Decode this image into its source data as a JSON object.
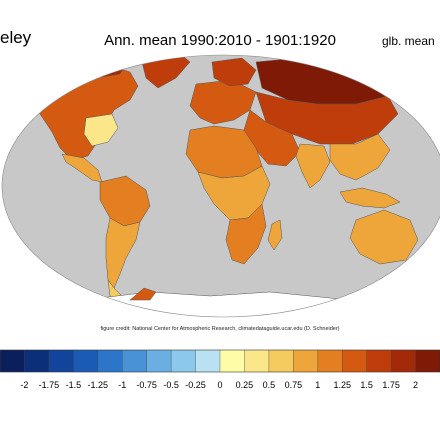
{
  "header": {
    "left_label": "eley",
    "title": "Ann. mean 1990:2010 - 1901:1920",
    "right_label": "glb. mean"
  },
  "credit": "figure credit: National Center for Atmospheric Research, climatedataguide.ucar.edu (D. Schneider)",
  "map": {
    "ocean_color": "#c8c8c8",
    "outline_color": "#555555",
    "regions": [
      {
        "name": "north-america",
        "value": 1.25
      },
      {
        "name": "arctic-canada",
        "value": 1.75
      },
      {
        "name": "alaska",
        "value": 1.75
      },
      {
        "name": "greenland",
        "value": 1.5
      },
      {
        "name": "eastern-us",
        "value": 0.25
      },
      {
        "name": "central-america",
        "value": 0.75
      },
      {
        "name": "south-america",
        "value": 0.75
      },
      {
        "name": "amazon",
        "value": 1.0
      },
      {
        "name": "patagonia",
        "value": 0.5
      },
      {
        "name": "europe",
        "value": 1.25
      },
      {
        "name": "scandinavia",
        "value": 1.5
      },
      {
        "name": "siberia",
        "value": 2.0
      },
      {
        "name": "central-asia",
        "value": 1.5
      },
      {
        "name": "middle-east",
        "value": 1.25
      },
      {
        "name": "india",
        "value": 0.75
      },
      {
        "name": "southeast-asia",
        "value": 0.75
      },
      {
        "name": "sahara",
        "value": 1.0
      },
      {
        "name": "central-africa",
        "value": 0.75
      },
      {
        "name": "southern-africa",
        "value": 1.0
      },
      {
        "name": "madagascar",
        "value": 0.75
      },
      {
        "name": "australia",
        "value": 0.75
      },
      {
        "name": "indonesia",
        "value": 0.75
      },
      {
        "name": "antarctica-peninsula",
        "value": 1.25
      },
      {
        "name": "antarctica",
        "value": null
      }
    ]
  },
  "colorbar": {
    "ticks": [
      "-2",
      "-1.75",
      "-1.5",
      "-1.25",
      "-1",
      "-0.75",
      "-0.5",
      "-0.25",
      "0",
      "0.25",
      "0.5",
      "0.75",
      "1",
      "1.25",
      "1.5",
      "1.75",
      "2"
    ],
    "colors": [
      "#0a1f5c",
      "#0c2f7a",
      "#11449a",
      "#1a5cb5",
      "#2b76c9",
      "#4a92d6",
      "#6aaee2",
      "#8cc8ec",
      "#b9e1f2",
      "#fffca8",
      "#fbe68a",
      "#f5ca5e",
      "#eea63a",
      "#e37f20",
      "#d45a12",
      "#bf3d0a",
      "#a32908",
      "#7e1a05"
    ]
  }
}
